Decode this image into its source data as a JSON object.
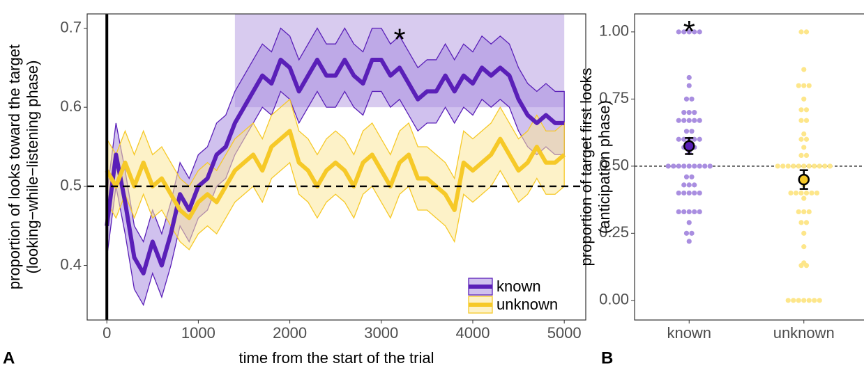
{
  "chart_data": [
    {
      "type": "line",
      "panel_label": "A",
      "x_label": "time from the start of the trial",
      "y_label": [
        "proportion of looks toward the target",
        "(looking−while−listening phase)"
      ],
      "xlim": [
        -215,
        5235
      ],
      "ylim": [
        0.331,
        0.718
      ],
      "xticks": [
        0,
        1000,
        2000,
        3000,
        4000,
        5000
      ],
      "yticks": [
        0.4,
        0.5,
        0.6,
        0.7
      ],
      "vline": 0,
      "hline": 0.5,
      "legend": "bottom-right",
      "significant_region": {
        "xlim": [
          1400,
          5000
        ],
        "ylim": [
          0.6,
          0.718
        ],
        "color": "#d8cbef"
      },
      "annotations": [
        {
          "text": "*",
          "x": 3200,
          "y": 0.69,
          "color": "#5a1fb8"
        }
      ],
      "x": [
        0,
        100,
        200,
        300,
        400,
        500,
        600,
        700,
        800,
        900,
        1000,
        1100,
        1200,
        1300,
        1400,
        1500,
        1600,
        1700,
        1800,
        1900,
        2000,
        2100,
        2200,
        2300,
        2400,
        2500,
        2600,
        2700,
        2800,
        2900,
        3000,
        3100,
        3200,
        3300,
        3400,
        3500,
        3600,
        3700,
        3800,
        3900,
        4000,
        4100,
        4200,
        4300,
        4400,
        4500,
        4600,
        4700,
        4800,
        4900,
        5000
      ],
      "series": [
        {
          "name": "known",
          "color": "#5a1fb8",
          "ribbon_color": "#a98ee0",
          "values": [
            0.45,
            0.54,
            0.48,
            0.41,
            0.39,
            0.43,
            0.4,
            0.44,
            0.49,
            0.47,
            0.5,
            0.51,
            0.54,
            0.55,
            0.58,
            0.6,
            0.62,
            0.64,
            0.63,
            0.66,
            0.65,
            0.62,
            0.64,
            0.66,
            0.64,
            0.64,
            0.66,
            0.64,
            0.63,
            0.66,
            0.66,
            0.64,
            0.65,
            0.63,
            0.61,
            0.62,
            0.62,
            0.64,
            0.62,
            0.64,
            0.63,
            0.65,
            0.64,
            0.65,
            0.64,
            0.61,
            0.59,
            0.58,
            0.59,
            0.58,
            0.58
          ],
          "lower": [
            0.41,
            0.5,
            0.44,
            0.37,
            0.35,
            0.39,
            0.36,
            0.4,
            0.45,
            0.43,
            0.46,
            0.47,
            0.5,
            0.51,
            0.54,
            0.56,
            0.58,
            0.6,
            0.59,
            0.62,
            0.61,
            0.58,
            0.6,
            0.62,
            0.6,
            0.6,
            0.62,
            0.6,
            0.59,
            0.62,
            0.62,
            0.6,
            0.61,
            0.59,
            0.57,
            0.58,
            0.58,
            0.6,
            0.58,
            0.6,
            0.59,
            0.61,
            0.6,
            0.61,
            0.6,
            0.57,
            0.55,
            0.54,
            0.55,
            0.54,
            0.54
          ],
          "upper": [
            0.49,
            0.58,
            0.52,
            0.45,
            0.43,
            0.47,
            0.44,
            0.48,
            0.53,
            0.51,
            0.54,
            0.55,
            0.58,
            0.59,
            0.62,
            0.64,
            0.66,
            0.68,
            0.67,
            0.7,
            0.69,
            0.66,
            0.68,
            0.7,
            0.68,
            0.68,
            0.7,
            0.68,
            0.67,
            0.7,
            0.7,
            0.68,
            0.69,
            0.67,
            0.65,
            0.66,
            0.66,
            0.68,
            0.66,
            0.68,
            0.67,
            0.69,
            0.68,
            0.69,
            0.68,
            0.65,
            0.63,
            0.62,
            0.63,
            0.62,
            0.62
          ]
        },
        {
          "name": "unknown",
          "color": "#f6c928",
          "ribbon_color": "#fbe79a",
          "values": [
            0.52,
            0.5,
            0.53,
            0.5,
            0.53,
            0.5,
            0.51,
            0.49,
            0.47,
            0.46,
            0.48,
            0.49,
            0.48,
            0.5,
            0.52,
            0.53,
            0.54,
            0.52,
            0.55,
            0.56,
            0.57,
            0.53,
            0.52,
            0.5,
            0.52,
            0.53,
            0.52,
            0.5,
            0.53,
            0.54,
            0.52,
            0.5,
            0.53,
            0.54,
            0.51,
            0.51,
            0.5,
            0.49,
            0.47,
            0.53,
            0.52,
            0.53,
            0.54,
            0.56,
            0.54,
            0.52,
            0.53,
            0.55,
            0.53,
            0.53,
            0.54
          ],
          "lower": [
            0.48,
            0.46,
            0.49,
            0.46,
            0.49,
            0.46,
            0.47,
            0.45,
            0.43,
            0.42,
            0.44,
            0.45,
            0.44,
            0.46,
            0.48,
            0.49,
            0.5,
            0.48,
            0.51,
            0.52,
            0.53,
            0.49,
            0.48,
            0.46,
            0.48,
            0.49,
            0.48,
            0.46,
            0.49,
            0.5,
            0.48,
            0.46,
            0.49,
            0.5,
            0.47,
            0.47,
            0.46,
            0.45,
            0.43,
            0.49,
            0.48,
            0.49,
            0.5,
            0.52,
            0.5,
            0.48,
            0.49,
            0.51,
            0.49,
            0.49,
            0.5
          ],
          "upper": [
            0.56,
            0.54,
            0.57,
            0.54,
            0.57,
            0.54,
            0.55,
            0.53,
            0.51,
            0.5,
            0.52,
            0.53,
            0.52,
            0.54,
            0.56,
            0.57,
            0.58,
            0.56,
            0.59,
            0.6,
            0.61,
            0.57,
            0.56,
            0.54,
            0.56,
            0.57,
            0.56,
            0.54,
            0.57,
            0.58,
            0.56,
            0.54,
            0.57,
            0.58,
            0.55,
            0.55,
            0.54,
            0.53,
            0.51,
            0.57,
            0.56,
            0.57,
            0.58,
            0.6,
            0.58,
            0.56,
            0.57,
            0.59,
            0.57,
            0.57,
            0.58
          ]
        }
      ]
    },
    {
      "type": "strip",
      "panel_label": "B",
      "y_label": [
        "proportion of target first looks",
        "(anticipation phase)"
      ],
      "categories": [
        "known",
        "unknown"
      ],
      "ylim": [
        -0.073,
        1.067
      ],
      "yticks": [
        {
          "value": 0,
          "label": "0.00"
        },
        {
          "value": 0.25,
          "label": "0.25"
        },
        {
          "value": 0.5,
          "label": "0.50"
        },
        {
          "value": 0.75,
          "label": "0.75"
        },
        {
          "value": 1,
          "label": "1.00"
        }
      ],
      "hline": 0.5,
      "annotations": [
        {
          "text": "*",
          "category": 0,
          "y": 1.02,
          "color": "#5a1fb8"
        }
      ],
      "series": [
        {
          "name": "known",
          "color": "#a98ee0",
          "mean_color": "#5a1fb8",
          "mean": 0.575,
          "error": 0.03,
          "values": [
            1,
            1,
            1,
            1,
            1,
            0.83,
            0.8,
            0.75,
            0.75,
            0.7,
            0.7,
            0.7,
            0.67,
            0.67,
            0.67,
            0.67,
            0.67,
            0.63,
            0.63,
            0.6,
            0.6,
            0.6,
            0.6,
            0.6,
            0.57,
            0.57,
            0.57,
            0.55,
            0.5,
            0.5,
            0.5,
            0.5,
            0.5,
            0.5,
            0.5,
            0.5,
            0.5,
            0.46,
            0.46,
            0.43,
            0.43,
            0.43,
            0.4,
            0.4,
            0.4,
            0.4,
            0.4,
            0.33,
            0.33,
            0.33,
            0.33,
            0.33,
            0.29,
            0.25,
            0.25,
            0.22
          ]
        },
        {
          "name": "unknown",
          "color": "#fde68a",
          "mean_color": "#f6c928",
          "mean": 0.45,
          "error": 0.035,
          "values": [
            1,
            1,
            0.86,
            0.8,
            0.8,
            0.8,
            0.75,
            0.71,
            0.71,
            0.67,
            0.67,
            0.62,
            0.6,
            0.6,
            0.57,
            0.54,
            0.54,
            0.5,
            0.5,
            0.5,
            0.5,
            0.5,
            0.5,
            0.5,
            0.5,
            0.5,
            0.5,
            0.5,
            0.43,
            0.4,
            0.4,
            0.4,
            0.4,
            0.4,
            0.4,
            0.38,
            0.33,
            0.33,
            0.33,
            0.29,
            0.29,
            0.25,
            0.2,
            0.14,
            0.13,
            0.13,
            0,
            0,
            0,
            0,
            0,
            0,
            0
          ]
        }
      ]
    }
  ]
}
